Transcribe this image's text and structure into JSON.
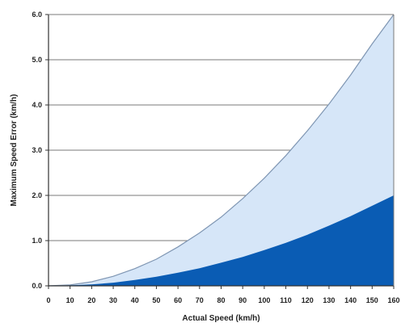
{
  "chart_data": {
    "type": "area",
    "xlabel": "Actual Speed (km/h)",
    "ylabel": "Maximum Speed Error (km/h)",
    "xlim": [
      0,
      160
    ],
    "ylim": [
      0,
      6.0
    ],
    "x_ticks": [
      "0",
      "10",
      "20",
      "30",
      "40",
      "50",
      "60",
      "70",
      "80",
      "90",
      "100",
      "110",
      "120",
      "130",
      "140",
      "150",
      "160"
    ],
    "y_ticks": [
      "0.0",
      "1.0",
      "2.0",
      "3.0",
      "4.0",
      "5.0",
      "6.0"
    ],
    "grid": true,
    "colors": {
      "upper_fill": "#d6e6f8",
      "upper_line": "#7f96b3",
      "lower_fill": "#0a5cb4",
      "grid": "#7a7a7a",
      "axis": "#333333"
    },
    "series": [
      {
        "x": [
          0,
          10,
          20,
          30,
          40,
          50,
          60,
          70,
          80,
          90,
          100,
          110,
          120,
          130,
          140,
          150,
          160
        ],
        "values": [
          0,
          0.02,
          0.09,
          0.21,
          0.38,
          0.59,
          0.86,
          1.17,
          1.52,
          1.93,
          2.38,
          2.88,
          3.43,
          4.02,
          4.66,
          5.35,
          6.0
        ]
      },
      {
        "x": [
          0,
          10,
          20,
          30,
          40,
          50,
          60,
          70,
          80,
          90,
          100,
          110,
          120,
          130,
          140,
          150,
          160
        ],
        "values": [
          0,
          0.01,
          0.03,
          0.07,
          0.13,
          0.2,
          0.29,
          0.39,
          0.51,
          0.64,
          0.79,
          0.95,
          1.13,
          1.33,
          1.54,
          1.77,
          2.0
        ]
      }
    ]
  }
}
